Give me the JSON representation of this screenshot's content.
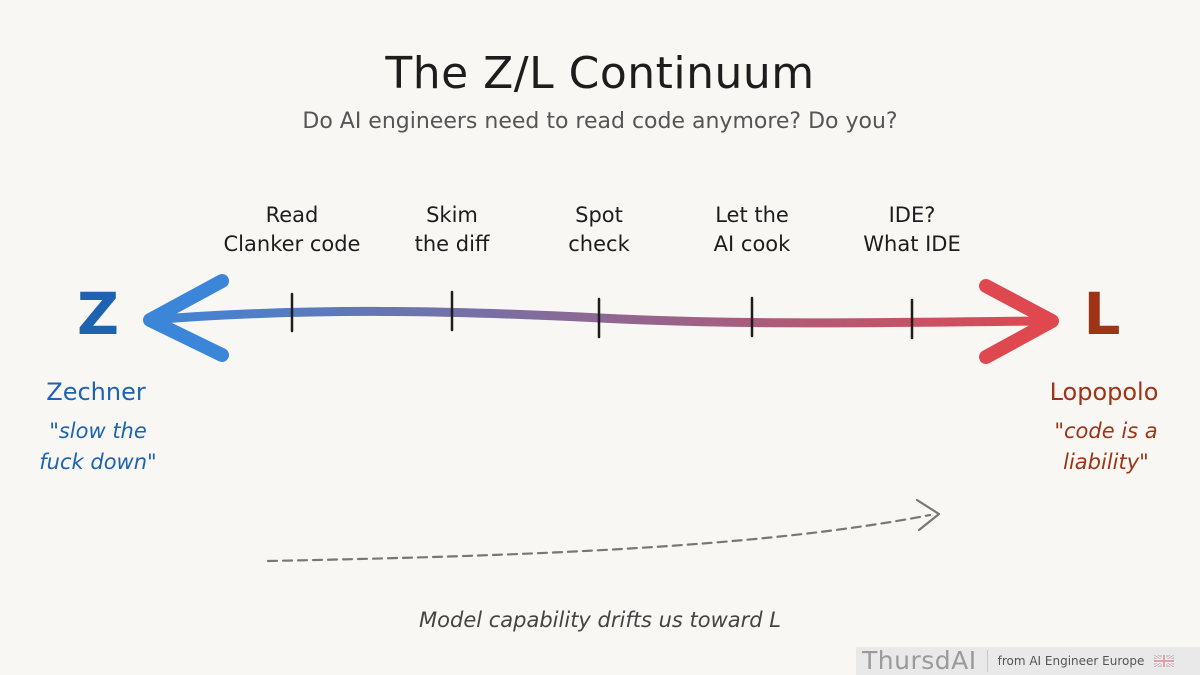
{
  "title": "The Z/L Continuum",
  "subtitle": "Do AI engineers need to read code anymore? Do you?",
  "stages": [
    {
      "line1": "Read",
      "line2": "Clanker code"
    },
    {
      "line1": "Skim",
      "line2": "the diff"
    },
    {
      "line1": "Spot",
      "line2": "check"
    },
    {
      "line1": "Let the",
      "line2": "AI cook"
    },
    {
      "line1": "IDE?",
      "line2": "What IDE"
    }
  ],
  "left_end": {
    "letter": "Z",
    "name": "Zechner",
    "quote_line1": "\"slow the",
    "quote_line2": "fuck down\"",
    "color": "#1e63b0"
  },
  "right_end": {
    "letter": "L",
    "name": "Lopopolo",
    "quote_line1": "\"code is a",
    "quote_line2": "liability\"",
    "color": "#9c3415"
  },
  "arrow_colors": {
    "left": "#3b86d8",
    "right": "#e0484f"
  },
  "drift_caption": "Model capability drifts us toward L",
  "badge": {
    "brand": "ThursdAI",
    "from": "from AI Engineer Europe",
    "flag_icon": "uk-flag-icon"
  }
}
